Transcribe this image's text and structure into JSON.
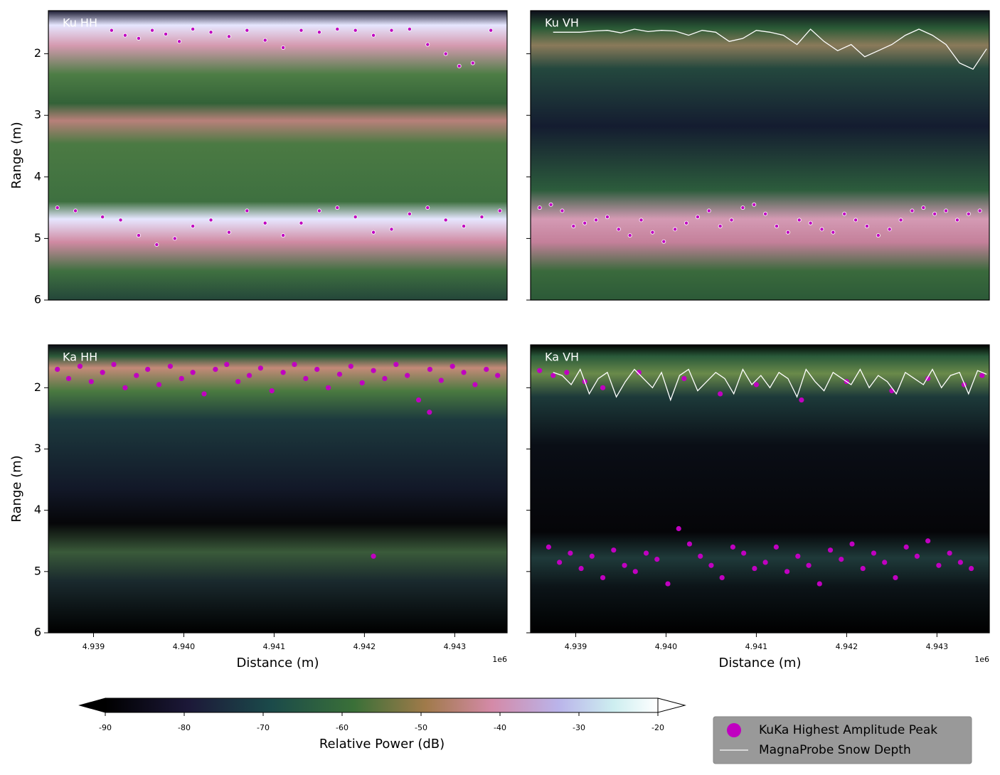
{
  "chart_data": [
    {
      "type": "radargram",
      "title": "Ku HH",
      "ylabel": "Range (m)",
      "ylim": [
        6,
        1.3
      ],
      "yticks": [
        2,
        3,
        4,
        5,
        6
      ],
      "ytick_labels": true,
      "xlim": [
        4938500,
        4943580
      ],
      "series": [
        {
          "type": "scatter",
          "color": "#c000c0",
          "x": [
            4939200,
            4939350,
            4939500,
            4939650,
            4939800,
            4939950,
            4940100,
            4940300,
            4940500,
            4940700,
            4940900,
            4941100,
            4941300,
            4941500,
            4941700,
            4941900,
            4942100,
            4942300,
            4942500,
            4942700,
            4942900,
            4943050,
            4943200,
            4943400
          ],
          "values": [
            1.62,
            1.7,
            1.75,
            1.62,
            1.68,
            1.8,
            1.6,
            1.65,
            1.72,
            1.62,
            1.78,
            1.9,
            1.62,
            1.65,
            1.6,
            1.62,
            1.7,
            1.62,
            1.6,
            1.85,
            2.0,
            2.2,
            2.15,
            1.62
          ]
        },
        {
          "type": "scatter",
          "color": "#c000c0",
          "x": [
            4938600,
            4938800,
            4939100,
            4939300,
            4939500,
            4939700,
            4939900,
            4940100,
            4940300,
            4940500,
            4940700,
            4940900,
            4941100,
            4941300,
            4941500,
            4941700,
            4941900,
            4942100,
            4942300,
            4942500,
            4942700,
            4942900,
            4943100,
            4943300,
            4943500
          ],
          "values": [
            4.5,
            4.55,
            4.65,
            4.7,
            4.95,
            5.1,
            5.0,
            4.8,
            4.7,
            4.9,
            4.55,
            4.75,
            4.95,
            4.75,
            4.55,
            4.5,
            4.65,
            4.9,
            4.85,
            4.6,
            4.5,
            4.7,
            4.8,
            4.65,
            4.55
          ]
        }
      ]
    },
    {
      "type": "radargram",
      "title": "Ku VH",
      "ylim": [
        6,
        1.3
      ],
      "yticks": [
        2,
        3,
        4,
        5,
        6
      ],
      "ytick_labels": false,
      "xlim": [
        4938500,
        4943580
      ],
      "series": [
        {
          "type": "scatter",
          "color": "#c000c0",
          "x": [
            4938600,
            4938725,
            4938850,
            4938975,
            4939100,
            4939225,
            4939350,
            4939475,
            4939600,
            4939725,
            4939850,
            4939975,
            4940100,
            4940225,
            4940350,
            4940475,
            4940600,
            4940725,
            4940850,
            4940975,
            4941100,
            4941225,
            4941350,
            4941475,
            4941600,
            4941725,
            4941850,
            4941975,
            4942100,
            4942225,
            4942350,
            4942475,
            4942600,
            4942725,
            4942850,
            4942975,
            4943100,
            4943225,
            4943350,
            4943475
          ],
          "values": [
            4.5,
            4.45,
            4.55,
            4.8,
            4.75,
            4.7,
            4.65,
            4.85,
            4.95,
            4.7,
            4.9,
            5.05,
            4.85,
            4.75,
            4.65,
            4.55,
            4.8,
            4.7,
            4.5,
            4.45,
            4.6,
            4.8,
            4.9,
            4.7,
            4.75,
            4.85,
            4.9,
            4.6,
            4.7,
            4.8,
            4.95,
            4.85,
            4.7,
            4.55,
            4.5,
            4.6,
            4.55,
            4.7,
            4.6,
            4.55
          ]
        },
        {
          "type": "line",
          "color": "#ffffff",
          "x": [
            4938750,
            4938900,
            4939050,
            4939200,
            4939350,
            4939500,
            4939650,
            4939800,
            4939950,
            4940100,
            4940250,
            4940400,
            4940550,
            4940700,
            4940850,
            4941000,
            4941150,
            4941300,
            4941450,
            4941600,
            4941750,
            4941900,
            4942050,
            4942200,
            4942350,
            4942500,
            4942650,
            4942800,
            4942950,
            4943100,
            4943250,
            4943400,
            4943550
          ],
          "values": [
            1.65,
            1.65,
            1.65,
            1.63,
            1.62,
            1.66,
            1.6,
            1.64,
            1.62,
            1.63,
            1.7,
            1.62,
            1.65,
            1.8,
            1.75,
            1.62,
            1.65,
            1.7,
            1.85,
            1.6,
            1.8,
            1.95,
            1.85,
            2.05,
            1.95,
            1.85,
            1.7,
            1.6,
            1.7,
            1.85,
            2.15,
            2.25,
            1.92
          ]
        }
      ]
    },
    {
      "type": "radargram",
      "title": "Ka HH",
      "ylabel": "Range (m)",
      "xlabel": "Distance (m)",
      "x_offset_label": "1e6",
      "ylim": [
        6,
        1.3
      ],
      "yticks": [
        2,
        3,
        4,
        5,
        6
      ],
      "ytick_labels": true,
      "xlim": [
        4938500,
        4943580
      ],
      "xticks": [
        {
          "value": 4939000,
          "label": "4.939"
        },
        {
          "value": 4940000,
          "label": "4.940"
        },
        {
          "value": 4941000,
          "label": "4.941"
        },
        {
          "value": 4942000,
          "label": "4.942"
        },
        {
          "value": 4943000,
          "label": "4.943"
        }
      ],
      "series": [
        {
          "type": "scatter",
          "color": "#c000c0",
          "x": [
            4938600,
            4938725,
            4938850,
            4938975,
            4939100,
            4939225,
            4939350,
            4939475,
            4939600,
            4939725,
            4939850,
            4939975,
            4940100,
            4940225,
            4940350,
            4940475,
            4940600,
            4940725,
            4940850,
            4940975,
            4941100,
            4941225,
            4941350,
            4941475,
            4941600,
            4941725,
            4941850,
            4941975,
            4942100,
            4942225,
            4942350,
            4942475,
            4942600,
            4942725,
            4942850,
            4942975,
            4943100,
            4943225,
            4943350,
            4943475,
            4942100,
            4942720
          ],
          "values": [
            1.7,
            1.85,
            1.65,
            1.9,
            1.75,
            1.62,
            2.0,
            1.8,
            1.7,
            1.95,
            1.65,
            1.85,
            1.75,
            2.1,
            1.7,
            1.62,
            1.9,
            1.8,
            1.68,
            2.05,
            1.75,
            1.62,
            1.85,
            1.7,
            2.0,
            1.78,
            1.65,
            1.92,
            1.72,
            1.85,
            1.62,
            1.8,
            2.2,
            1.7,
            1.88,
            1.65,
            1.75,
            1.95,
            1.7,
            1.8,
            4.75,
            2.4
          ]
        }
      ]
    },
    {
      "type": "radargram",
      "title": "Ka VH",
      "xlabel": "Distance (m)",
      "x_offset_label": "1e6",
      "ylim": [
        6,
        1.3
      ],
      "yticks": [
        2,
        3,
        4,
        5,
        6
      ],
      "ytick_labels": false,
      "xlim": [
        4938500,
        4943580
      ],
      "xticks": [
        {
          "value": 4939000,
          "label": "4.939"
        },
        {
          "value": 4940000,
          "label": "4.940"
        },
        {
          "value": 4941000,
          "label": "4.941"
        },
        {
          "value": 4942000,
          "label": "4.942"
        },
        {
          "value": 4943000,
          "label": "4.943"
        }
      ],
      "series": [
        {
          "type": "scatter",
          "color": "#c000c0",
          "x": [
            4938600,
            4938750,
            4938900,
            4939100,
            4939300,
            4939700,
            4940200,
            4940600,
            4941000,
            4941500,
            4942000,
            4942500,
            4942900,
            4943300,
            4943500
          ],
          "values": [
            1.72,
            1.8,
            1.75,
            1.9,
            2.0,
            1.75,
            1.85,
            2.1,
            1.95,
            2.2,
            1.9,
            2.05,
            1.85,
            1.95,
            1.8
          ]
        },
        {
          "type": "scatter",
          "color": "#c000c0",
          "x": [
            4938700,
            4938820,
            4938940,
            4939060,
            4939180,
            4939300,
            4939420,
            4939540,
            4939660,
            4939780,
            4939900,
            4940020,
            4940140,
            4940260,
            4940380,
            4940500,
            4940620,
            4940740,
            4940860,
            4940980,
            4941100,
            4941220,
            4941340,
            4941460,
            4941580,
            4941700,
            4941820,
            4941940,
            4942060,
            4942180,
            4942300,
            4942420,
            4942540,
            4942660,
            4942780,
            4942900,
            4943020,
            4943140,
            4943260,
            4943380
          ],
          "values": [
            4.6,
            4.85,
            4.7,
            4.95,
            4.75,
            5.1,
            4.65,
            4.9,
            5.0,
            4.7,
            4.8,
            5.2,
            4.3,
            4.55,
            4.75,
            4.9,
            5.1,
            4.6,
            4.7,
            4.95,
            4.85,
            4.6,
            5.0,
            4.75,
            4.9,
            5.2,
            4.65,
            4.8,
            4.55,
            4.95,
            4.7,
            4.85,
            5.1,
            4.6,
            4.75,
            4.5,
            4.9,
            4.7,
            4.85,
            4.95
          ]
        },
        {
          "type": "line",
          "color": "#ffffff",
          "x": [
            4938750,
            4938850,
            4938950,
            4939050,
            4939150,
            4939250,
            4939350,
            4939450,
            4939550,
            4939650,
            4939750,
            4939850,
            4939950,
            4940050,
            4940150,
            4940250,
            4940350,
            4940450,
            4940550,
            4940650,
            4940750,
            4940850,
            4940950,
            4941050,
            4941150,
            4941250,
            4941350,
            4941450,
            4941550,
            4941650,
            4941750,
            4941850,
            4941950,
            4942050,
            4942150,
            4942250,
            4942350,
            4942450,
            4942550,
            4942650,
            4942750,
            4942850,
            4942950,
            4943050,
            4943150,
            4943250,
            4943350,
            4943450,
            4943550
          ],
          "values": [
            1.75,
            1.8,
            1.95,
            1.7,
            2.1,
            1.85,
            1.75,
            2.15,
            1.9,
            1.7,
            1.85,
            2.0,
            1.75,
            2.2,
            1.8,
            1.7,
            2.05,
            1.9,
            1.75,
            1.85,
            2.1,
            1.7,
            1.95,
            1.8,
            2.0,
            1.75,
            1.85,
            2.15,
            1.7,
            1.9,
            2.05,
            1.75,
            1.85,
            1.95,
            1.7,
            2.0,
            1.8,
            1.9,
            2.1,
            1.75,
            1.85,
            1.95,
            1.7,
            2.0,
            1.8,
            1.75,
            2.1,
            1.72,
            1.78
          ]
        }
      ]
    }
  ],
  "colorbar": {
    "label": "Relative Power (dB)",
    "clim": [
      -90,
      -20
    ],
    "ticks": [
      -90,
      -80,
      -70,
      -60,
      -50,
      -40,
      -30,
      -20
    ]
  },
  "legend": [
    {
      "name": "KuKa Highest Amplitude Peak",
      "marker": "circle",
      "color": "#c000c0"
    },
    {
      "name": "MagnaProbe Snow Depth",
      "marker": "line",
      "color": "#ffffff"
    }
  ]
}
